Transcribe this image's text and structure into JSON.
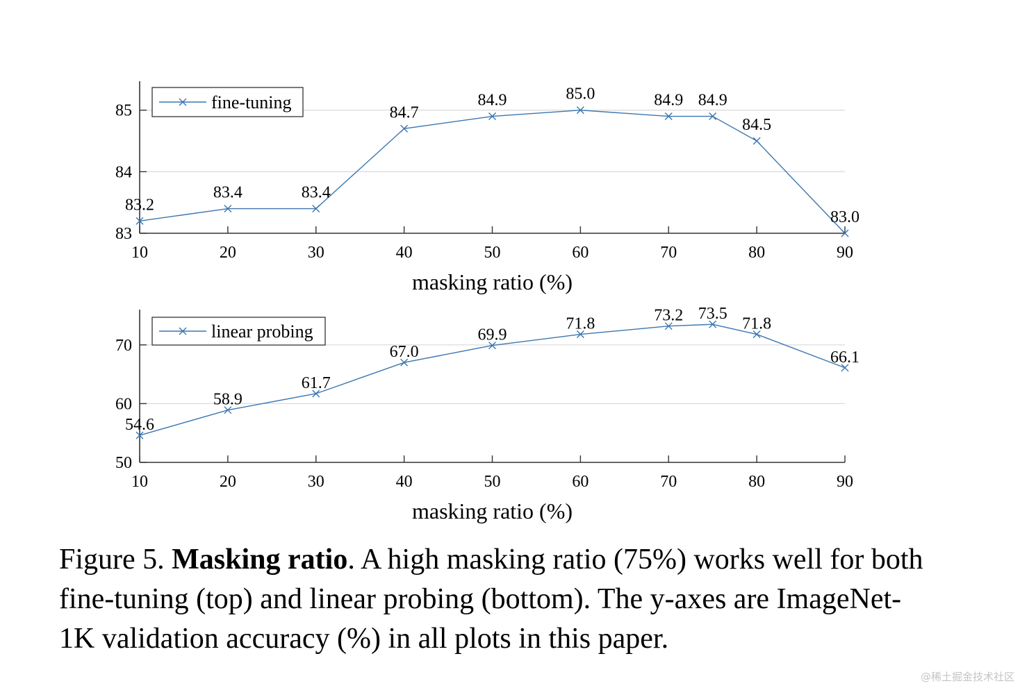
{
  "chart_data": [
    {
      "type": "line",
      "title": "",
      "xlabel": "masking ratio (%)",
      "ylabel": "",
      "x": [
        10,
        20,
        30,
        40,
        50,
        60,
        70,
        75,
        80,
        90
      ],
      "xticks": [
        10,
        20,
        30,
        40,
        50,
        60,
        70,
        80,
        90
      ],
      "yticks": [
        83,
        84,
        85
      ],
      "xlim": [
        10,
        90
      ],
      "ylim": [
        83,
        85.47
      ],
      "grid": "y-major",
      "legend": "top-left",
      "series": [
        {
          "name": "fine-tuning",
          "marker": "x",
          "color": "#3a76b0",
          "values": [
            83.2,
            83.4,
            83.4,
            84.7,
            84.9,
            85.0,
            84.9,
            84.9,
            84.5,
            83.0
          ],
          "labels": [
            "83.2",
            "83.4",
            "83.4",
            "84.7",
            "84.9",
            "85.0",
            "84.9",
            "84.9",
            "84.5",
            "83.0"
          ]
        }
      ]
    },
    {
      "type": "line",
      "title": "",
      "xlabel": "masking ratio (%)",
      "ylabel": "",
      "x": [
        10,
        20,
        30,
        40,
        50,
        60,
        70,
        75,
        80,
        90
      ],
      "xticks": [
        10,
        20,
        30,
        40,
        50,
        60,
        70,
        80,
        90
      ],
      "yticks": [
        50,
        60,
        70
      ],
      "xlim": [
        10,
        90
      ],
      "ylim": [
        50,
        76
      ],
      "grid": "y-major",
      "legend": "top-left",
      "series": [
        {
          "name": "linear probing",
          "marker": "x",
          "color": "#3a76b0",
          "values": [
            54.6,
            58.9,
            61.7,
            67.0,
            69.9,
            71.8,
            73.2,
            73.5,
            71.8,
            66.1
          ],
          "labels": [
            "54.6",
            "58.9",
            "61.7",
            "67.0",
            "69.9",
            "71.8",
            "73.2",
            "73.5",
            "71.8",
            "66.1"
          ]
        }
      ]
    }
  ],
  "caption": {
    "prefix": "Figure 5. ",
    "bold": "Masking ratio",
    "rest": ". A high masking ratio (75%) works well for both fine-tuning (top) and linear probing (bottom). The y-axes are ImageNet-1K validation accuracy (%) in all plots in this paper."
  },
  "watermark": "@稀土掘金技术社区"
}
